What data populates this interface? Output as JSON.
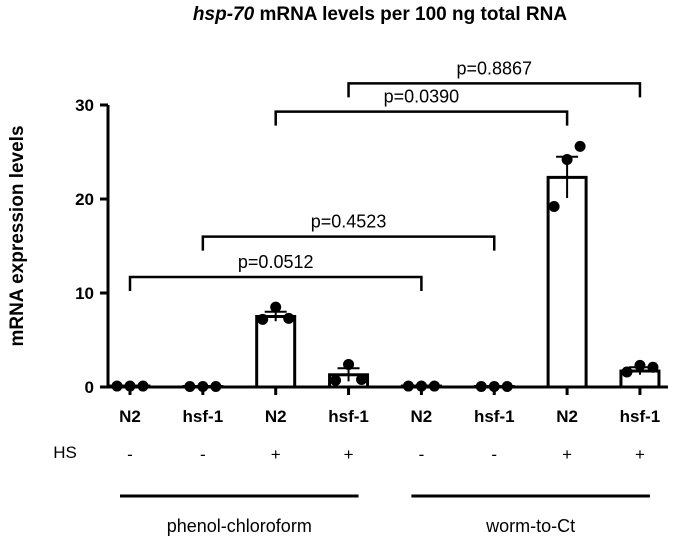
{
  "chart_data": {
    "type": "bar",
    "title_italic": "hsp-70",
    "title_rest": " mRNA levels per 100 ng total RNA",
    "ylabel": "mRNA expression levels",
    "ylim": [
      0,
      30
    ],
    "yticks": [
      0,
      10,
      20,
      30
    ],
    "categories": [
      "N2",
      "hsf-1",
      "N2",
      "hsf-1",
      "N2",
      "hsf-1",
      "N2",
      "hsf-1"
    ],
    "values": [
      0.1,
      0.05,
      7.5,
      1.3,
      0.1,
      0.05,
      22.3,
      1.7
    ],
    "errors": [
      0.05,
      0.05,
      0.5,
      0.7,
      0.05,
      0.05,
      2.2,
      0.4
    ],
    "points": [
      [
        0.1,
        0.1,
        0.1
      ],
      [
        0.05,
        0.05,
        0.05
      ],
      [
        7.2,
        8.5,
        7.3
      ],
      [
        0.7,
        2.4,
        0.8
      ],
      [
        0.1,
        0.1,
        0.1
      ],
      [
        0.05,
        0.05,
        0.05
      ],
      [
        19.2,
        24.2,
        25.6
      ],
      [
        1.6,
        2.3,
        2.1
      ]
    ],
    "hs_row_label": "HS",
    "hs": [
      "-",
      "-",
      "+",
      "+",
      "-",
      "-",
      "+",
      "+"
    ],
    "groups": [
      {
        "label": "phenol-chloroform",
        "from": 0,
        "to": 3
      },
      {
        "label": "worm-to-Ct",
        "from": 4,
        "to": 7
      }
    ],
    "comparisons": [
      {
        "from": 3,
        "to": 7,
        "y": 32.3,
        "label": "p=0.8867"
      },
      {
        "from": 2,
        "to": 6,
        "y": 29.3,
        "label": "p=0.0390"
      },
      {
        "from": 1,
        "to": 5,
        "y": 16.0,
        "label": "p=0.4523"
      },
      {
        "from": 0,
        "to": 4,
        "y": 11.7,
        "label": "p=0.0512"
      }
    ]
  }
}
